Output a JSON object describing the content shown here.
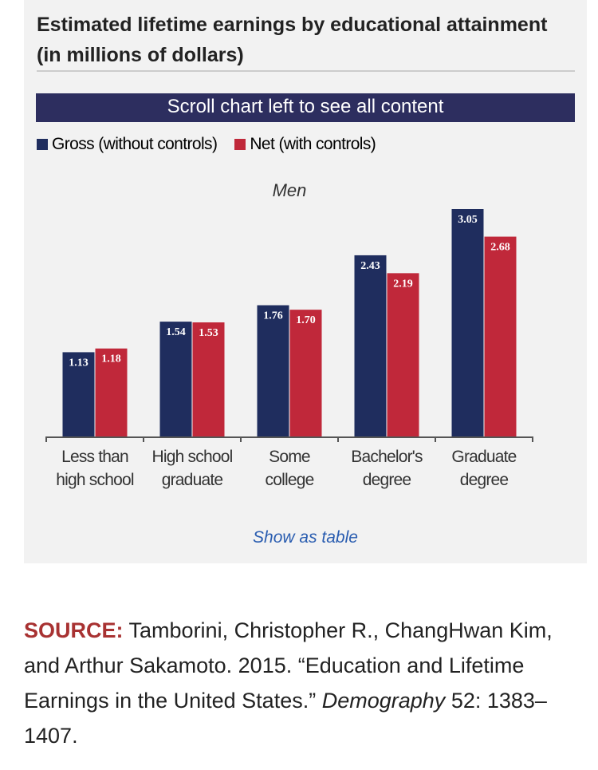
{
  "title": "Estimated lifetime earnings by educational attainment (in millions of dollars)",
  "scroll_banner": "Scroll chart left to see all content",
  "show_table_link": "Show as table",
  "source": {
    "label": "SOURCE:",
    "text": "Tamborini, Christopher R., ChangHwan Kim, and Arthur Sakamoto. 2015. “Education and Lifetime Earnings in the United States.”",
    "journal": "Demography",
    "citation_tail": "52: 1383–1407."
  },
  "colors": {
    "gross": "#1f2d5e",
    "net": "#c0283a",
    "link": "#2a5db0",
    "source_label": "#a83232",
    "banner": "#2d2e5f"
  },
  "chart_data": {
    "type": "bar",
    "title": "Men",
    "categories": [
      [
        "Less than",
        "high school"
      ],
      [
        "High school",
        "graduate"
      ],
      [
        "Some",
        "college"
      ],
      [
        "Bachelor's",
        "degree"
      ],
      [
        "Graduate",
        "degree"
      ]
    ],
    "series": [
      {
        "name": "Gross (without controls)",
        "values": [
          1.13,
          1.54,
          1.76,
          2.43,
          3.05
        ],
        "labels": [
          "1.13",
          "1.54",
          "1.76",
          "2.43",
          "3.05"
        ]
      },
      {
        "name": "Net (with controls)",
        "values": [
          1.18,
          1.53,
          1.7,
          2.19,
          2.68
        ],
        "labels": [
          "1.18",
          "1.53",
          "1.70",
          "2.19",
          "2.68"
        ]
      }
    ],
    "ylim": [
      0,
      3.05
    ],
    "legend_position": "top-left",
    "grid": false
  }
}
